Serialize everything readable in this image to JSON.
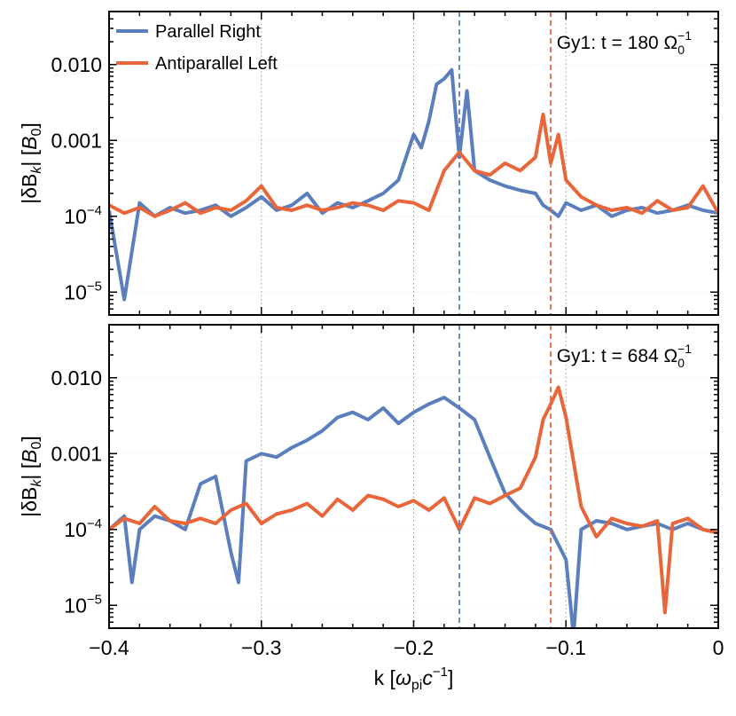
{
  "chart_data": {
    "type": "line",
    "x_axis": {
      "label_main": "k [",
      "label_symbol": "ω",
      "label_sub": "pi",
      "label_c": "c",
      "label_exp": "−1",
      "label_close": "]",
      "ticks": [
        -0.4,
        -0.3,
        -0.2,
        -0.1,
        0
      ],
      "tick_labels": [
        "−0.4",
        "−0.3",
        "−0.2",
        "−0.1",
        "0"
      ],
      "range": [
        -0.4,
        0
      ]
    },
    "y_axis": {
      "label_pre": "|δB",
      "label_sub": "k",
      "label_mid": "| [",
      "label_b": "B",
      "label_b_sub": "0",
      "label_close": "]",
      "scale": "log",
      "range": [
        5e-06,
        0.05
      ],
      "ticks": [
        0.01,
        0.001,
        0.0001,
        1e-05
      ],
      "tick_labels": [
        {
          "base": "0.010",
          "exp": ""
        },
        {
          "base": "0.001",
          "exp": ""
        },
        {
          "base": "10",
          "exp": "−4"
        },
        {
          "base": "10",
          "exp": "−5"
        }
      ]
    },
    "legend": {
      "position": "top-left",
      "entries": [
        {
          "name": "Parallel Right",
          "color": "#5b7fbd"
        },
        {
          "name": "Antiparallel Left",
          "color": "#e8663a"
        }
      ]
    },
    "reference_lines": {
      "dotted_x": [
        -0.3,
        -0.2,
        -0.1
      ],
      "dashed": [
        {
          "x": -0.17,
          "color": "#5b7fbd"
        },
        {
          "x": -0.11,
          "color": "#e8663a"
        }
      ]
    },
    "panels": [
      {
        "title_pre": "Gy1: t = 180 Ω",
        "title_sub": "0",
        "title_sup": "−1",
        "series": [
          {
            "name": "Parallel Right",
            "color": "#5b7fbd",
            "x": [
              -0.4,
              -0.39,
              -0.38,
              -0.37,
              -0.36,
              -0.35,
              -0.34,
              -0.33,
              -0.32,
              -0.31,
              -0.3,
              -0.29,
              -0.28,
              -0.27,
              -0.26,
              -0.25,
              -0.24,
              -0.23,
              -0.22,
              -0.21,
              -0.2,
              -0.195,
              -0.19,
              -0.185,
              -0.18,
              -0.175,
              -0.17,
              -0.165,
              -0.16,
              -0.15,
              -0.14,
              -0.13,
              -0.12,
              -0.115,
              -0.11,
              -0.105,
              -0.1,
              -0.09,
              -0.08,
              -0.07,
              -0.06,
              -0.05,
              -0.04,
              -0.03,
              -0.02,
              -0.01,
              0
            ],
            "y": [
              0.00012,
              8e-06,
              0.00015,
              0.0001,
              0.00013,
              0.00011,
              0.00012,
              0.00014,
              0.0001,
              0.00013,
              0.00018,
              0.00012,
              0.00014,
              0.0002,
              0.00011,
              0.00015,
              0.00013,
              0.00016,
              0.0002,
              0.0003,
              0.0012,
              0.0008,
              0.0018,
              0.0055,
              0.0065,
              0.0085,
              0.0006,
              0.0045,
              0.0004,
              0.0003,
              0.00025,
              0.00022,
              0.0002,
              0.00014,
              0.00012,
              0.0001,
              0.00015,
              0.00012,
              0.00014,
              0.0001,
              0.00012,
              0.00013,
              0.00011,
              0.00012,
              0.00014,
              0.00012,
              0.00011
            ]
          },
          {
            "name": "Antiparallel Left",
            "color": "#e8663a",
            "x": [
              -0.4,
              -0.39,
              -0.38,
              -0.37,
              -0.36,
              -0.35,
              -0.34,
              -0.33,
              -0.32,
              -0.31,
              -0.3,
              -0.29,
              -0.28,
              -0.27,
              -0.26,
              -0.25,
              -0.24,
              -0.23,
              -0.22,
              -0.21,
              -0.2,
              -0.19,
              -0.18,
              -0.17,
              -0.16,
              -0.15,
              -0.14,
              -0.13,
              -0.12,
              -0.115,
              -0.11,
              -0.105,
              -0.1,
              -0.09,
              -0.08,
              -0.07,
              -0.06,
              -0.05,
              -0.04,
              -0.03,
              -0.02,
              -0.01,
              0
            ],
            "y": [
              0.00014,
              0.00011,
              0.00013,
              0.0001,
              0.00012,
              0.00015,
              0.00011,
              0.00013,
              0.00012,
              0.00016,
              0.00025,
              0.00013,
              0.00012,
              0.00014,
              0.00012,
              0.00013,
              0.00015,
              0.00014,
              0.00012,
              0.00016,
              0.00015,
              0.00012,
              0.0004,
              0.0007,
              0.0004,
              0.00035,
              0.0005,
              0.0004,
              0.0006,
              0.0022,
              0.0005,
              0.0012,
              0.0003,
              0.00018,
              0.00014,
              0.00012,
              0.00013,
              0.00011,
              0.00016,
              0.00012,
              0.00013,
              0.00025,
              0.00011
            ]
          }
        ]
      },
      {
        "title_pre": "Gy1: t = 684 Ω",
        "title_sub": "0",
        "title_sup": "−1",
        "series": [
          {
            "name": "Parallel Right",
            "color": "#5b7fbd",
            "x": [
              -0.4,
              -0.39,
              -0.385,
              -0.38,
              -0.37,
              -0.36,
              -0.35,
              -0.34,
              -0.33,
              -0.32,
              -0.315,
              -0.31,
              -0.3,
              -0.29,
              -0.28,
              -0.27,
              -0.26,
              -0.25,
              -0.24,
              -0.23,
              -0.22,
              -0.21,
              -0.2,
              -0.19,
              -0.18,
              -0.17,
              -0.16,
              -0.15,
              -0.14,
              -0.13,
              -0.12,
              -0.11,
              -0.1,
              -0.095,
              -0.09,
              -0.08,
              -0.07,
              -0.06,
              -0.05,
              -0.04,
              -0.03,
              -0.02,
              -0.01,
              0
            ],
            "y": [
              0.0001,
              0.00015,
              2e-05,
              0.0001,
              0.00015,
              0.00013,
              0.0001,
              0.0004,
              0.0005,
              5e-05,
              2e-05,
              0.0008,
              0.001,
              0.0009,
              0.0012,
              0.0015,
              0.002,
              0.003,
              0.0035,
              0.0028,
              0.004,
              0.0025,
              0.0035,
              0.0045,
              0.0055,
              0.004,
              0.0028,
              0.0009,
              0.0003,
              0.00018,
              0.00012,
              0.0001,
              4e-05,
              4e-06,
              0.0001,
              0.00013,
              0.00012,
              0.0001,
              0.00011,
              0.00012,
              0.0001,
              0.00012,
              0.0001,
              9e-05
            ]
          },
          {
            "name": "Antiparallel Left",
            "color": "#e8663a",
            "x": [
              -0.4,
              -0.39,
              -0.38,
              -0.37,
              -0.36,
              -0.35,
              -0.34,
              -0.33,
              -0.32,
              -0.31,
              -0.3,
              -0.29,
              -0.28,
              -0.27,
              -0.26,
              -0.25,
              -0.24,
              -0.23,
              -0.22,
              -0.21,
              -0.2,
              -0.19,
              -0.18,
              -0.17,
              -0.16,
              -0.15,
              -0.14,
              -0.13,
              -0.12,
              -0.115,
              -0.11,
              -0.105,
              -0.1,
              -0.09,
              -0.08,
              -0.07,
              -0.06,
              -0.05,
              -0.04,
              -0.035,
              -0.03,
              -0.02,
              -0.01,
              0
            ],
            "y": [
              0.0001,
              0.00014,
              0.00012,
              0.0002,
              0.00013,
              0.00012,
              0.00014,
              0.00012,
              0.00018,
              0.00022,
              0.00012,
              0.00016,
              0.00018,
              0.00022,
              0.00015,
              0.00025,
              0.00018,
              0.00028,
              0.00025,
              0.0002,
              0.00024,
              0.00018,
              0.00026,
              0.0001,
              0.00026,
              0.00022,
              0.00028,
              0.00035,
              0.0009,
              0.0028,
              0.0045,
              0.0075,
              0.003,
              0.0002,
              8e-05,
              0.00014,
              0.00012,
              0.00011,
              0.00013,
              8e-06,
              0.00012,
              0.00014,
              0.0001,
              9e-05
            ]
          }
        ]
      }
    ]
  }
}
